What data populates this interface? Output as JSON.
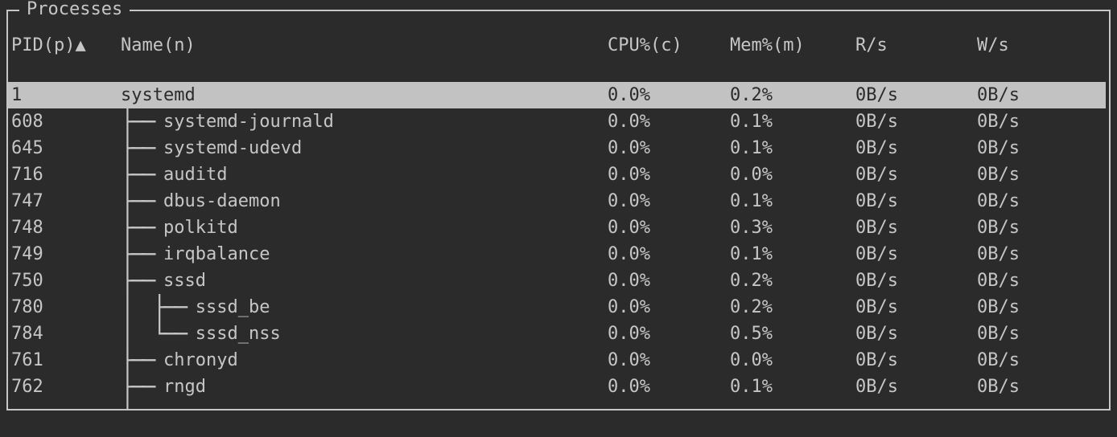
{
  "colors": {
    "background": "#2b2b2b",
    "foreground": "#c6c6c6",
    "border": "#c6c6c6",
    "selected_bg": "#c2c2c2",
    "selected_fg": "#2b2b2b"
  },
  "panel": {
    "title": "Processes"
  },
  "table": {
    "sort": {
      "column": "PID",
      "direction": "ascending",
      "indicator": "▲"
    },
    "columns": [
      {
        "label": "PID(p)"
      },
      {
        "label": "Name(n)"
      },
      {
        "label": "CPU%(c)"
      },
      {
        "label": "Mem%(m)"
      },
      {
        "label": "R/s"
      },
      {
        "label": "W/s"
      }
    ],
    "rows": [
      {
        "pid": "1",
        "prefix": "",
        "name": "systemd",
        "cpu": "0.0%",
        "mem": "0.2%",
        "read": "0B/s",
        "write": "0B/s",
        "selected": true
      },
      {
        "pid": "608",
        "prefix": "├── ",
        "name": "systemd-journald",
        "cpu": "0.0%",
        "mem": "0.1%",
        "read": "0B/s",
        "write": "0B/s",
        "selected": false
      },
      {
        "pid": "645",
        "prefix": "├── ",
        "name": "systemd-udevd",
        "cpu": "0.0%",
        "mem": "0.1%",
        "read": "0B/s",
        "write": "0B/s",
        "selected": false
      },
      {
        "pid": "716",
        "prefix": "├── ",
        "name": "auditd",
        "cpu": "0.0%",
        "mem": "0.0%",
        "read": "0B/s",
        "write": "0B/s",
        "selected": false
      },
      {
        "pid": "747",
        "prefix": "├── ",
        "name": "dbus-daemon",
        "cpu": "0.0%",
        "mem": "0.1%",
        "read": "0B/s",
        "write": "0B/s",
        "selected": false
      },
      {
        "pid": "748",
        "prefix": "├── ",
        "name": "polkitd",
        "cpu": "0.0%",
        "mem": "0.3%",
        "read": "0B/s",
        "write": "0B/s",
        "selected": false
      },
      {
        "pid": "749",
        "prefix": "├── ",
        "name": "irqbalance",
        "cpu": "0.0%",
        "mem": "0.1%",
        "read": "0B/s",
        "write": "0B/s",
        "selected": false
      },
      {
        "pid": "750",
        "prefix": "├── ",
        "name": "sssd",
        "cpu": "0.0%",
        "mem": "0.2%",
        "read": "0B/s",
        "write": "0B/s",
        "selected": false
      },
      {
        "pid": "780",
        "prefix": "│  ├── ",
        "name": "sssd_be",
        "cpu": "0.0%",
        "mem": "0.2%",
        "read": "0B/s",
        "write": "0B/s",
        "selected": false
      },
      {
        "pid": "784",
        "prefix": "│  └── ",
        "name": "sssd_nss",
        "cpu": "0.0%",
        "mem": "0.5%",
        "read": "0B/s",
        "write": "0B/s",
        "selected": false
      },
      {
        "pid": "761",
        "prefix": "├── ",
        "name": "chronyd",
        "cpu": "0.0%",
        "mem": "0.0%",
        "read": "0B/s",
        "write": "0B/s",
        "selected": false
      },
      {
        "pid": "762",
        "prefix": "├── ",
        "name": "rngd",
        "cpu": "0.0%",
        "mem": "0.1%",
        "read": "0B/s",
        "write": "0B/s",
        "selected": false
      }
    ],
    "clipped_row": {
      "prefix": "│"
    }
  }
}
